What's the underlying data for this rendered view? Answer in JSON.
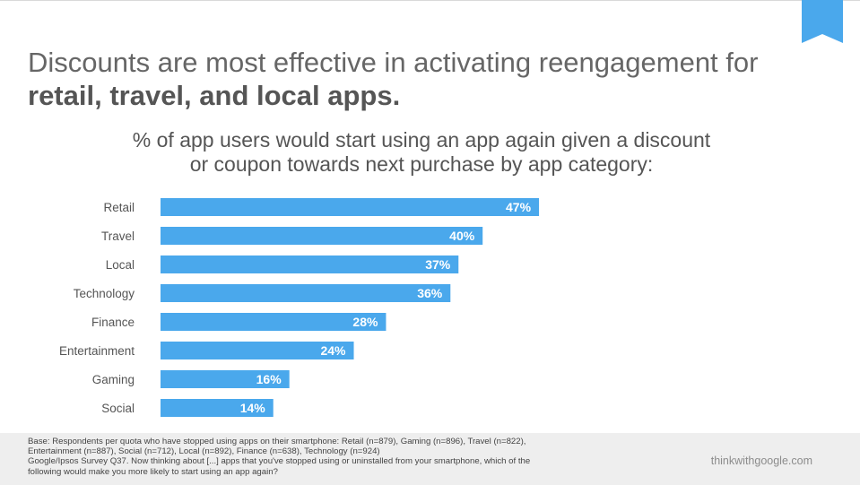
{
  "slide": {
    "headline_regular": "Discounts are most effective in activating reengagement for ",
    "headline_bold": "retail, travel, and local apps.",
    "subtitle_line1": "% of app users would start using an app again given a discount",
    "subtitle_line2": "or coupon towards next purchase by app category:",
    "bookmark_color": "#4aa8ec"
  },
  "chart_data": {
    "type": "bar",
    "orientation": "horizontal",
    "categories": [
      "Retail",
      "Travel",
      "Local",
      "Technology",
      "Finance",
      "Entertainment",
      "Gaming",
      "Social"
    ],
    "values": [
      47,
      40,
      37,
      36,
      28,
      24,
      16,
      14
    ],
    "data_labels": [
      "47%",
      "40%",
      "37%",
      "36%",
      "28%",
      "24%",
      "16%",
      "14%"
    ],
    "title": "% of app users would start using an app again given a discount or coupon towards next purchase by app category:",
    "xlim": [
      0,
      100
    ],
    "grid": false,
    "legend": "none",
    "bar_color": "#4aa8ec"
  },
  "footer": {
    "base_line1": "Base: Respondents per quota who have stopped using apps on their smartphone: Retail (n=879), Gaming (n=896), Travel (n=822),",
    "base_line2": "Entertainment (n=887), Social (n=712), Local (n=892), Finance (n=638), Technology (n=924)",
    "source_line1": "Google/Ipsos Survey Q37. Now thinking about [...] apps that you've stopped using or uninstalled from your smartphone, which of the",
    "source_line2": "following would make you more likely to start using an app again?",
    "brand": "thinkwithgoogle.com"
  }
}
